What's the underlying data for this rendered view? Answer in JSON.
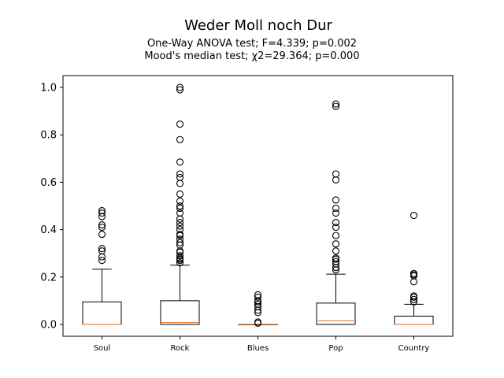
{
  "chart_data": {
    "type": "box",
    "title": "Weder Moll noch Dur",
    "subtitles": [
      "One-Way ANOVA test; F=4.339; p=0.002",
      "Mood's median test; χ2=29.364; p=0.000"
    ],
    "xlabel": "",
    "ylabel": "",
    "ylim": [
      -0.05,
      1.05
    ],
    "yticks": [
      "0.0",
      "0.2",
      "0.4",
      "0.6",
      "0.8",
      "1.0"
    ],
    "grid": false,
    "colors": {
      "box": "#000000",
      "median": "#e8823a",
      "outlier": "#000000"
    },
    "categories": [
      "Soul",
      "Rock",
      "Blues",
      "Pop",
      "Country"
    ],
    "boxes": [
      {
        "q1": 0.0,
        "median": 0.0,
        "q3": 0.095,
        "whisker_low": 0.0,
        "whisker_high": 0.233,
        "outliers": [
          0.27,
          0.285,
          0.31,
          0.32,
          0.38,
          0.41,
          0.42,
          0.455,
          0.47,
          0.48
        ]
      },
      {
        "q1": 0.0,
        "median": 0.008,
        "q3": 0.1,
        "whisker_low": 0.0,
        "whisker_high": 0.25,
        "outliers": [
          0.26,
          0.27,
          0.275,
          0.28,
          0.29,
          0.305,
          0.31,
          0.335,
          0.345,
          0.36,
          0.375,
          0.38,
          0.4,
          0.415,
          0.43,
          0.445,
          0.47,
          0.49,
          0.5,
          0.52,
          0.55,
          0.595,
          0.62,
          0.635,
          0.685,
          0.78,
          0.845,
          0.99,
          1.0
        ]
      },
      {
        "q1": 0.0,
        "median": 0.0,
        "q3": 0.0,
        "whisker_low": 0.0,
        "whisker_high": 0.0,
        "outliers": [
          0.005,
          0.01,
          0.05,
          0.06,
          0.075,
          0.085,
          0.095,
          0.1,
          0.115,
          0.125
        ]
      },
      {
        "q1": 0.0,
        "median": 0.015,
        "q3": 0.09,
        "whisker_low": 0.0,
        "whisker_high": 0.212,
        "outliers": [
          0.23,
          0.24,
          0.255,
          0.265,
          0.275,
          0.28,
          0.31,
          0.34,
          0.375,
          0.41,
          0.43,
          0.47,
          0.49,
          0.525,
          0.61,
          0.635,
          0.92,
          0.93
        ]
      },
      {
        "q1": 0.0,
        "median": 0.0,
        "q3": 0.035,
        "whisker_low": 0.0,
        "whisker_high": 0.085,
        "outliers": [
          0.095,
          0.105,
          0.115,
          0.12,
          0.18,
          0.205,
          0.21,
          0.215,
          0.46
        ]
      }
    ]
  }
}
